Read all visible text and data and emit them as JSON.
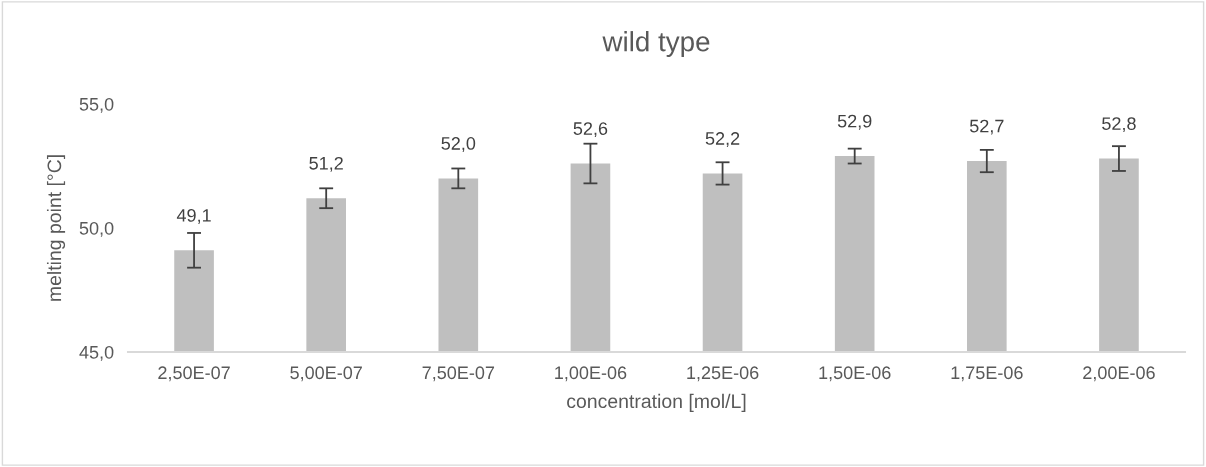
{
  "chart_data": {
    "type": "bar",
    "title": "wild type",
    "xlabel": "concentration [mol/L]",
    "ylabel": "melting point [°C]",
    "categories": [
      "2,50E-07",
      "5,00E-07",
      "7,50E-07",
      "1,00E-06",
      "1,25E-06",
      "1,50E-06",
      "1,75E-06",
      "2,00E-06"
    ],
    "values": [
      49.1,
      51.2,
      52.0,
      52.6,
      52.2,
      52.9,
      52.7,
      52.8
    ],
    "errors": [
      0.7,
      0.4,
      0.4,
      0.8,
      0.45,
      0.3,
      0.45,
      0.5
    ],
    "value_labels": [
      "49,1",
      "51,2",
      "52,0",
      "52,6",
      "52,2",
      "52,9",
      "52,7",
      "52,8"
    ],
    "color": "#bfbfbf",
    "ylim": [
      45,
      55
    ],
    "yticks": [
      {
        "value": 45,
        "label": "45,0"
      },
      {
        "value": 50,
        "label": "50,0"
      },
      {
        "value": 55,
        "label": "55,0"
      }
    ],
    "grid": false,
    "legend": false
  }
}
